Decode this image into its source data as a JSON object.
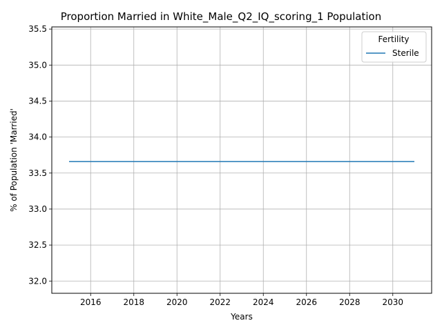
{
  "chart_data": {
    "type": "line",
    "title": "Proportion Married in White_Male_Q2_IQ_scoring_1 Population",
    "xlabel": "Years",
    "ylabel": "% of Population 'Married'",
    "xlim": [
      2014.2,
      2031.8
    ],
    "ylim": [
      31.83,
      35.53
    ],
    "xticks": [
      2016,
      2018,
      2020,
      2022,
      2024,
      2026,
      2028,
      2030
    ],
    "yticks": [
      32.0,
      32.5,
      33.0,
      33.5,
      34.0,
      34.5,
      35.0,
      35.5
    ],
    "ytick_labels": [
      "32.0",
      "32.5",
      "33.0",
      "33.5",
      "34.0",
      "34.5",
      "35.0",
      "35.5"
    ],
    "grid": true,
    "legend": {
      "title": "Fertility",
      "position": "top-right"
    },
    "series": [
      {
        "name": "Sterile",
        "color": "#1f77b4",
        "x": [
          2015,
          2016,
          2017,
          2018,
          2019,
          2020,
          2021,
          2022,
          2023,
          2024,
          2025,
          2026,
          2027,
          2028,
          2029,
          2030,
          2031
        ],
        "y": [
          33.66,
          33.66,
          33.66,
          33.66,
          33.66,
          33.66,
          33.66,
          33.66,
          33.66,
          33.66,
          33.66,
          33.66,
          33.66,
          33.66,
          33.66,
          33.66,
          33.66
        ]
      }
    ]
  }
}
